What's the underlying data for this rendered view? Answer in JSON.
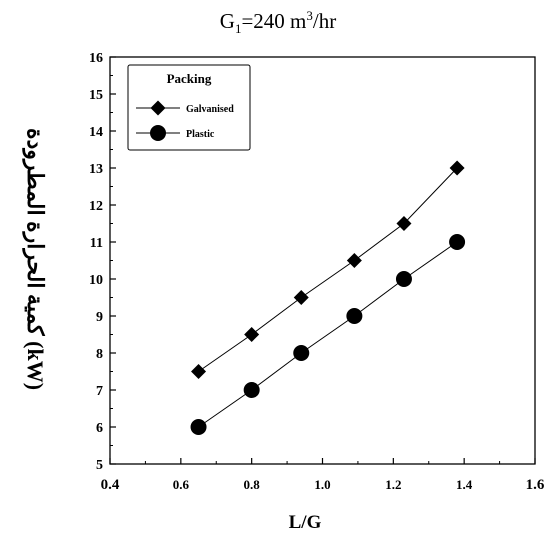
{
  "title": {
    "prefix": "G",
    "subscript": "1",
    "middle": "=240 m",
    "superscript": "3",
    "suffix": "/hr"
  },
  "chart_data": {
    "type": "line",
    "xlabel": "L/G",
    "ylabel": "كمية الحرارة المطرودة (kW)",
    "xlim": [
      0.4,
      1.6
    ],
    "ylim": [
      5,
      16
    ],
    "xticks": [
      "0.4",
      "0.6",
      "0.8",
      "1.0",
      "1.2",
      "1.4",
      "1.6"
    ],
    "yticks": [
      "5",
      "6",
      "7",
      "8",
      "9",
      "10",
      "11",
      "12",
      "13",
      "14",
      "15",
      "16"
    ],
    "legend": {
      "title": "Packing",
      "placement": "top-left"
    },
    "series": [
      {
        "name": "Galvanised",
        "marker": "diamond",
        "x": [
          0.65,
          0.8,
          0.94,
          1.09,
          1.23,
          1.38
        ],
        "y": [
          7.5,
          8.5,
          9.5,
          10.5,
          11.5,
          13.0
        ]
      },
      {
        "name": "Plastic",
        "marker": "circle",
        "x": [
          0.65,
          0.8,
          0.94,
          1.09,
          1.23,
          1.38
        ],
        "y": [
          6.0,
          7.0,
          8.0,
          9.0,
          10.0,
          11.0
        ]
      }
    ],
    "grid": false
  }
}
